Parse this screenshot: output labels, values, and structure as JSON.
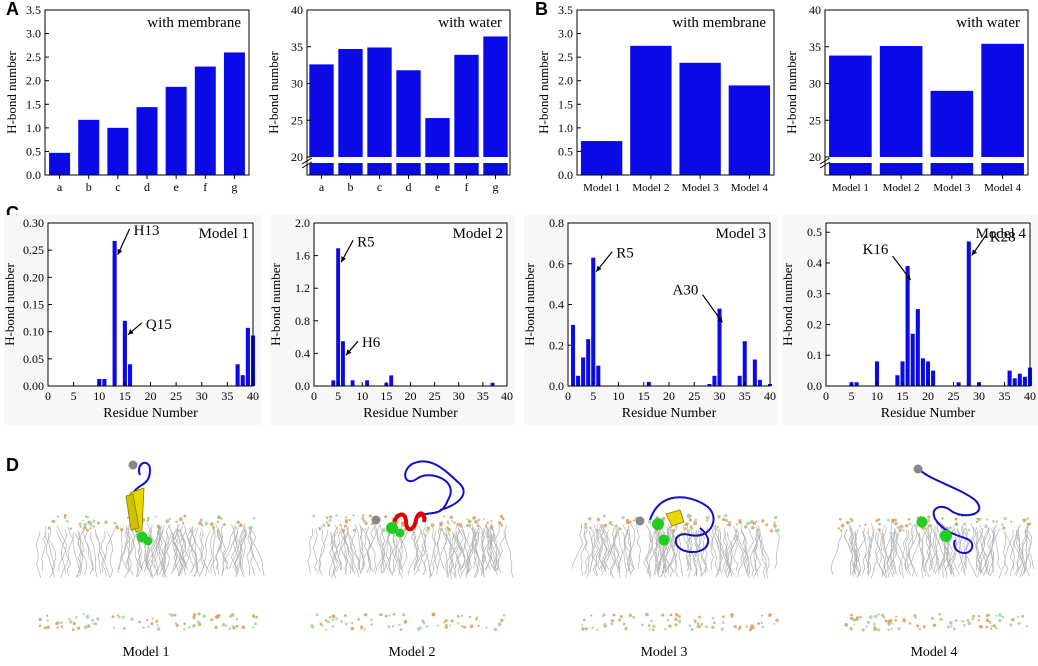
{
  "panel_labels": {
    "a": "A",
    "b": "B",
    "c": "C",
    "d": "D"
  },
  "model_labels": [
    "Model 1",
    "Model 2",
    "Model 3",
    "Model 4"
  ],
  "colors": {
    "bar": "#0a0ae6",
    "helix": "#e00000",
    "strand": "#e8d800",
    "anchor": "#22cc22",
    "coil": "#1010c8",
    "lipid_chain": "#b4b4b4",
    "lipid_head": "#d8a060"
  },
  "chart_data": [
    {
      "id": "A-membrane",
      "type": "bar",
      "title": "with membrane",
      "ylabel": "H-bond number",
      "xlabel": "",
      "categories": [
        "a",
        "b",
        "c",
        "d",
        "e",
        "f",
        "g"
      ],
      "values": [
        0.47,
        1.17,
        1.0,
        1.44,
        1.87,
        2.3,
        2.6
      ],
      "ylim": [
        0,
        3.5
      ],
      "yticks": [
        0,
        0.5,
        1.0,
        1.5,
        2.0,
        2.5,
        3.0,
        3.5
      ],
      "ytick_labels": [
        "0.0",
        "0.5",
        "1.0",
        "1.5",
        "2.0",
        "2.5",
        "3.0",
        "3.5"
      ]
    },
    {
      "id": "A-water",
      "type": "bar",
      "title": "with water",
      "ylabel": "H-bond number",
      "xlabel": "",
      "categories": [
        "a",
        "b",
        "c",
        "d",
        "e",
        "f",
        "g"
      ],
      "values": [
        32.6,
        34.7,
        34.9,
        31.8,
        25.3,
        33.9,
        36.4
      ],
      "ylim": [
        20,
        40
      ],
      "axis_break": true,
      "yticks": [
        20,
        25,
        30,
        35,
        40
      ],
      "ytick_labels": [
        "20",
        "25",
        "30",
        "35",
        "40"
      ]
    },
    {
      "id": "B-membrane",
      "type": "bar",
      "title": "with membrane",
      "ylabel": "H-bond number",
      "xlabel": "",
      "categories": [
        "Model 1",
        "Model 2",
        "Model 3",
        "Model 4"
      ],
      "values": [
        0.72,
        2.74,
        2.38,
        1.9
      ],
      "ylim": [
        0,
        3.5
      ],
      "yticks": [
        0,
        0.5,
        1.0,
        1.5,
        2.0,
        2.5,
        3.0,
        3.5
      ],
      "ytick_labels": [
        "0.0",
        "0.5",
        "1.0",
        "1.5",
        "2.0",
        "2.5",
        "3.0",
        "3.5"
      ]
    },
    {
      "id": "B-water",
      "type": "bar",
      "title": "with water",
      "ylabel": "H-bond number",
      "xlabel": "",
      "categories": [
        "Model 1",
        "Model 2",
        "Model 3",
        "Model 4"
      ],
      "values": [
        33.8,
        35.1,
        29.0,
        35.4
      ],
      "ylim": [
        20,
        40
      ],
      "axis_break": true,
      "yticks": [
        20,
        25,
        30,
        35,
        40
      ],
      "ytick_labels": [
        "20",
        "25",
        "30",
        "35",
        "40"
      ]
    },
    {
      "id": "C-model1",
      "type": "bar",
      "title": "Model 1",
      "ylabel": "H-bond number",
      "xlabel": "Residue Number",
      "x": [
        10,
        11,
        13,
        15,
        16,
        37,
        38,
        39,
        40
      ],
      "values": [
        0.013,
        0.013,
        0.267,
        0.12,
        0.04,
        0.04,
        0.02,
        0.107,
        0.093
      ],
      "xlim": [
        0,
        40
      ],
      "xticks": [
        0,
        5,
        10,
        15,
        20,
        25,
        30,
        35,
        40
      ],
      "ylim": [
        0,
        0.3
      ],
      "yticks": [
        0,
        0.05,
        0.1,
        0.15,
        0.2,
        0.25,
        0.3
      ],
      "ytick_labels": [
        "0.00",
        "0.05",
        "0.10",
        "0.15",
        "0.20",
        "0.25",
        "0.30"
      ],
      "annotations": [
        {
          "text": "H13",
          "x": 13
        },
        {
          "text": "Q15",
          "x": 15
        }
      ]
    },
    {
      "id": "C-model2",
      "type": "bar",
      "title": "Model 2",
      "ylabel": "H-bond number",
      "xlabel": "Residue Number",
      "x": [
        4,
        5,
        6,
        8,
        11,
        15,
        16,
        37
      ],
      "values": [
        0.07,
        1.69,
        0.55,
        0.07,
        0.07,
        0.04,
        0.13,
        0.04
      ],
      "xlim": [
        0,
        40
      ],
      "xticks": [
        0,
        5,
        10,
        15,
        20,
        25,
        30,
        35,
        40
      ],
      "ylim": [
        0,
        2.0
      ],
      "yticks": [
        0,
        0.4,
        0.8,
        1.2,
        1.6,
        2.0
      ],
      "ytick_labels": [
        "0.0",
        "0.4",
        "0.8",
        "1.2",
        "1.6",
        "2.0"
      ],
      "annotations": [
        {
          "text": "R5",
          "x": 5
        },
        {
          "text": "H6",
          "x": 6
        }
      ]
    },
    {
      "id": "C-model3",
      "type": "bar",
      "title": "Model 3",
      "ylabel": "H-bond number",
      "xlabel": "Residue Number",
      "x": [
        1,
        2,
        3,
        4,
        5,
        6,
        16,
        28,
        29,
        30,
        34,
        35,
        37,
        38,
        40
      ],
      "values": [
        0.3,
        0.05,
        0.14,
        0.23,
        0.63,
        0.1,
        0.02,
        0.01,
        0.05,
        0.38,
        0.05,
        0.22,
        0.13,
        0.03,
        0.01
      ],
      "xlim": [
        0,
        40
      ],
      "xticks": [
        0,
        5,
        10,
        15,
        20,
        25,
        30,
        35,
        40
      ],
      "ylim": [
        0,
        0.8
      ],
      "yticks": [
        0,
        0.2,
        0.4,
        0.6,
        0.8
      ],
      "ytick_labels": [
        "0.0",
        "0.2",
        "0.4",
        "0.6",
        "0.8"
      ],
      "annotations": [
        {
          "text": "R5",
          "x": 5
        },
        {
          "text": "A30",
          "x": 30
        }
      ]
    },
    {
      "id": "C-model4",
      "type": "bar",
      "title": "Model 4",
      "ylabel": "H-bond number",
      "xlabel": "Residue Number",
      "x": [
        5,
        6,
        10,
        14,
        15,
        16,
        17,
        18,
        19,
        20,
        21,
        26,
        28,
        30,
        36,
        37,
        38,
        39,
        40
      ],
      "values": [
        0.012,
        0.012,
        0.08,
        0.035,
        0.08,
        0.39,
        0.17,
        0.25,
        0.09,
        0.08,
        0.05,
        0.012,
        0.47,
        0.012,
        0.05,
        0.025,
        0.04,
        0.03,
        0.06
      ],
      "xlim": [
        0,
        40
      ],
      "xticks": [
        0,
        5,
        10,
        15,
        20,
        25,
        30,
        35,
        40
      ],
      "ylim": [
        0,
        0.53
      ],
      "yticks": [
        0,
        0.1,
        0.2,
        0.3,
        0.4,
        0.5
      ],
      "ytick_labels": [
        "0.0",
        "0.1",
        "0.2",
        "0.3",
        "0.4",
        "0.5"
      ],
      "annotations": [
        {
          "text": "K16",
          "x": 16
        },
        {
          "text": "K28",
          "x": 28
        }
      ]
    }
  ]
}
